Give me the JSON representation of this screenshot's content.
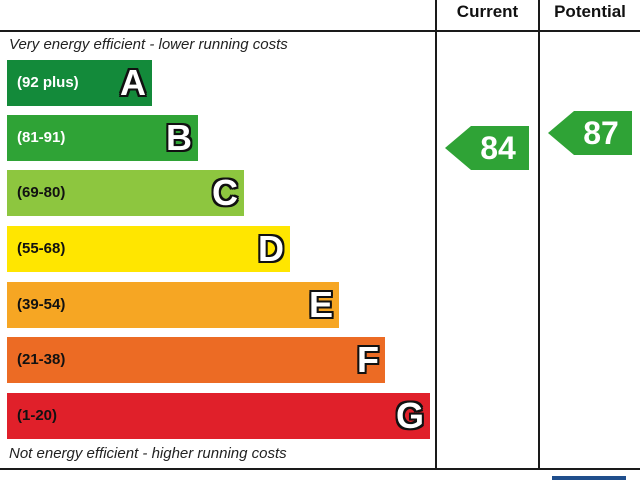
{
  "chart_data": {
    "type": "table",
    "columns": [
      "Current",
      "Potential"
    ],
    "top_caption": "Very energy efficient - lower running costs",
    "bottom_caption": "Not energy efficient - higher running costs",
    "bands": [
      {
        "letter": "A",
        "range": "(92 plus)",
        "color": "#138a3a",
        "label_dark": false
      },
      {
        "letter": "B",
        "range": "(81-91)",
        "color": "#2fa336",
        "label_dark": false
      },
      {
        "letter": "C",
        "range": "(69-80)",
        "color": "#8dc63f",
        "label_dark": true
      },
      {
        "letter": "D",
        "range": "(55-68)",
        "color": "#ffe600",
        "label_dark": true
      },
      {
        "letter": "E",
        "range": "(39-54)",
        "color": "#f6a623",
        "label_dark": true
      },
      {
        "letter": "F",
        "range": "(21-38)",
        "color": "#ec6b24",
        "label_dark": true
      },
      {
        "letter": "G",
        "range": "(1-20)",
        "color": "#e0202a",
        "label_dark": true
      }
    ],
    "current": {
      "value": 84,
      "band": "B",
      "color": "#2fa336"
    },
    "potential": {
      "value": 87,
      "band": "B",
      "color": "#2fa336"
    }
  }
}
